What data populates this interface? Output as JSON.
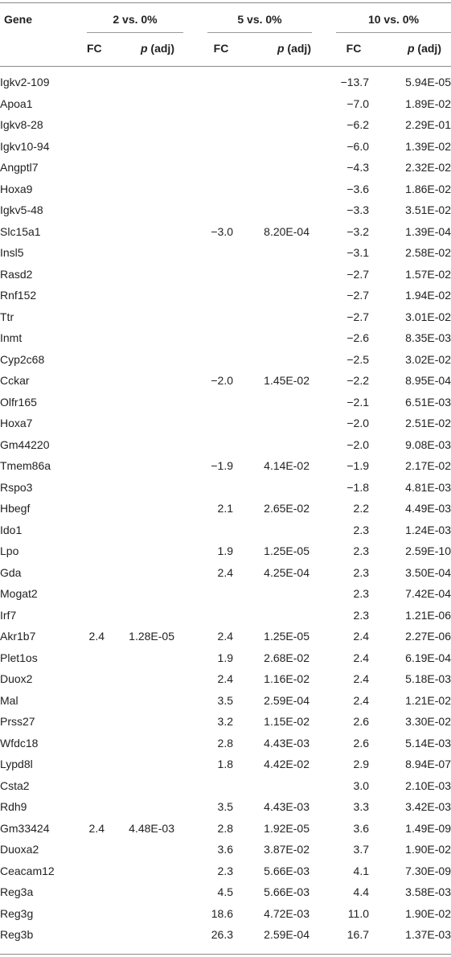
{
  "header": {
    "gene": "Gene",
    "groups": [
      "2 vs. 0%",
      "5 vs. 0%",
      "10 vs. 0%"
    ],
    "fc": "FC",
    "p_italic": "p",
    "p_rest": " (adj)"
  },
  "rows": [
    {
      "gene": "Igkv2-109",
      "fc2": "",
      "p2": "",
      "fc5": "",
      "p5": "",
      "fc10": "−13.7",
      "p10": "5.94E-05"
    },
    {
      "gene": "Apoa1",
      "fc2": "",
      "p2": "",
      "fc5": "",
      "p5": "",
      "fc10": "−7.0",
      "p10": "1.89E-02"
    },
    {
      "gene": "Igkv8-28",
      "fc2": "",
      "p2": "",
      "fc5": "",
      "p5": "",
      "fc10": "−6.2",
      "p10": "2.29E-01"
    },
    {
      "gene": "Igkv10-94",
      "fc2": "",
      "p2": "",
      "fc5": "",
      "p5": "",
      "fc10": "−6.0",
      "p10": "1.39E-02"
    },
    {
      "gene": "Angptl7",
      "fc2": "",
      "p2": "",
      "fc5": "",
      "p5": "",
      "fc10": "−4.3",
      "p10": "2.32E-02"
    },
    {
      "gene": "Hoxa9",
      "fc2": "",
      "p2": "",
      "fc5": "",
      "p5": "",
      "fc10": "−3.6",
      "p10": "1.86E-02"
    },
    {
      "gene": "Igkv5-48",
      "fc2": "",
      "p2": "",
      "fc5": "",
      "p5": "",
      "fc10": "−3.3",
      "p10": "3.51E-02"
    },
    {
      "gene": "Slc15a1",
      "fc2": "",
      "p2": "",
      "fc5": "−3.0",
      "p5": "8.20E-04",
      "fc10": "−3.2",
      "p10": "1.39E-04"
    },
    {
      "gene": "Insl5",
      "fc2": "",
      "p2": "",
      "fc5": "",
      "p5": "",
      "fc10": "−3.1",
      "p10": "2.58E-02"
    },
    {
      "gene": "Rasd2",
      "fc2": "",
      "p2": "",
      "fc5": "",
      "p5": "",
      "fc10": "−2.7",
      "p10": "1.57E-02"
    },
    {
      "gene": "Rnf152",
      "fc2": "",
      "p2": "",
      "fc5": "",
      "p5": "",
      "fc10": "−2.7",
      "p10": "1.94E-02"
    },
    {
      "gene": "Ttr",
      "fc2": "",
      "p2": "",
      "fc5": "",
      "p5": "",
      "fc10": "−2.7",
      "p10": "3.01E-02"
    },
    {
      "gene": "Inmt",
      "fc2": "",
      "p2": "",
      "fc5": "",
      "p5": "",
      "fc10": "−2.6",
      "p10": "8.35E-03"
    },
    {
      "gene": "Cyp2c68",
      "fc2": "",
      "p2": "",
      "fc5": "",
      "p5": "",
      "fc10": "−2.5",
      "p10": "3.02E-02"
    },
    {
      "gene": "Cckar",
      "fc2": "",
      "p2": "",
      "fc5": "−2.0",
      "p5": "1.45E-02",
      "fc10": "−2.2",
      "p10": "8.95E-04"
    },
    {
      "gene": "Olfr165",
      "fc2": "",
      "p2": "",
      "fc5": "",
      "p5": "",
      "fc10": "−2.1",
      "p10": "6.51E-03"
    },
    {
      "gene": "Hoxa7",
      "fc2": "",
      "p2": "",
      "fc5": "",
      "p5": "",
      "fc10": "−2.0",
      "p10": "2.51E-02"
    },
    {
      "gene": "Gm44220",
      "fc2": "",
      "p2": "",
      "fc5": "",
      "p5": "",
      "fc10": "−2.0",
      "p10": "9.08E-03"
    },
    {
      "gene": "Tmem86a",
      "fc2": "",
      "p2": "",
      "fc5": "−1.9",
      "p5": "4.14E-02",
      "fc10": "−1.9",
      "p10": "2.17E-02"
    },
    {
      "gene": "Rspo3",
      "fc2": "",
      "p2": "",
      "fc5": "",
      "p5": "",
      "fc10": "−1.8",
      "p10": "4.81E-03"
    },
    {
      "gene": "Hbegf",
      "fc2": "",
      "p2": "",
      "fc5": "2.1",
      "p5": "2.65E-02",
      "fc10": "2.2",
      "p10": "4.49E-03"
    },
    {
      "gene": "Ido1",
      "fc2": "",
      "p2": "",
      "fc5": "",
      "p5": "",
      "fc10": "2.3",
      "p10": "1.24E-03"
    },
    {
      "gene": "Lpo",
      "fc2": "",
      "p2": "",
      "fc5": "1.9",
      "p5": "1.25E-05",
      "fc10": "2.3",
      "p10": "2.59E-10"
    },
    {
      "gene": "Gda",
      "fc2": "",
      "p2": "",
      "fc5": "2.4",
      "p5": "4.25E-04",
      "fc10": "2.3",
      "p10": "3.50E-04"
    },
    {
      "gene": "Mogat2",
      "fc2": "",
      "p2": "",
      "fc5": "",
      "p5": "",
      "fc10": "2.3",
      "p10": "7.42E-04"
    },
    {
      "gene": "Irf7",
      "fc2": "",
      "p2": "",
      "fc5": "",
      "p5": "",
      "fc10": "2.3",
      "p10": "1.21E-06"
    },
    {
      "gene": "Akr1b7",
      "fc2": "2.4",
      "p2": "1.28E-05",
      "fc5": "2.4",
      "p5": "1.25E-05",
      "fc10": "2.4",
      "p10": "2.27E-06"
    },
    {
      "gene": "Plet1os",
      "fc2": "",
      "p2": "",
      "fc5": "1.9",
      "p5": "2.68E-02",
      "fc10": "2.4",
      "p10": "6.19E-04"
    },
    {
      "gene": "Duox2",
      "fc2": "",
      "p2": "",
      "fc5": "2.4",
      "p5": "1.16E-02",
      "fc10": "2.4",
      "p10": "5.18E-03"
    },
    {
      "gene": "Mal",
      "fc2": "",
      "p2": "",
      "fc5": "3.5",
      "p5": "2.59E-04",
      "fc10": "2.4",
      "p10": "1.21E-02"
    },
    {
      "gene": "Prss27",
      "fc2": "",
      "p2": "",
      "fc5": "3.2",
      "p5": "1.15E-02",
      "fc10": "2.6",
      "p10": "3.30E-02"
    },
    {
      "gene": "Wfdc18",
      "fc2": "",
      "p2": "",
      "fc5": "2.8",
      "p5": "4.43E-03",
      "fc10": "2.6",
      "p10": "5.14E-03"
    },
    {
      "gene": "Lypd8l",
      "fc2": "",
      "p2": "",
      "fc5": "1.8",
      "p5": "4.42E-02",
      "fc10": "2.9",
      "p10": "8.94E-07"
    },
    {
      "gene": "Csta2",
      "fc2": "",
      "p2": "",
      "fc5": "",
      "p5": "",
      "fc10": "3.0",
      "p10": "2.10E-03"
    },
    {
      "gene": "Rdh9",
      "fc2": "",
      "p2": "",
      "fc5": "3.5",
      "p5": "4.43E-03",
      "fc10": "3.3",
      "p10": "3.42E-03"
    },
    {
      "gene": "Gm33424",
      "fc2": "2.4",
      "p2": "4.48E-03",
      "fc5": "2.8",
      "p5": "1.92E-05",
      "fc10": "3.6",
      "p10": "1.49E-09"
    },
    {
      "gene": "Duoxa2",
      "fc2": "",
      "p2": "",
      "fc5": "3.6",
      "p5": "3.87E-02",
      "fc10": "3.7",
      "p10": "1.90E-02"
    },
    {
      "gene": "Ceacam12",
      "fc2": "",
      "p2": "",
      "fc5": "2.3",
      "p5": "5.66E-03",
      "fc10": "4.1",
      "p10": "7.30E-09"
    },
    {
      "gene": "Reg3a",
      "fc2": "",
      "p2": "",
      "fc5": "4.5",
      "p5": "5.66E-03",
      "fc10": "4.4",
      "p10": "3.58E-03"
    },
    {
      "gene": "Reg3g",
      "fc2": "",
      "p2": "",
      "fc5": "18.6",
      "p5": "4.72E-03",
      "fc10": "11.0",
      "p10": "1.90E-02"
    },
    {
      "gene": "Reg3b",
      "fc2": "",
      "p2": "",
      "fc5": "26.3",
      "p5": "2.59E-04",
      "fc10": "16.7",
      "p10": "1.37E-03"
    }
  ]
}
